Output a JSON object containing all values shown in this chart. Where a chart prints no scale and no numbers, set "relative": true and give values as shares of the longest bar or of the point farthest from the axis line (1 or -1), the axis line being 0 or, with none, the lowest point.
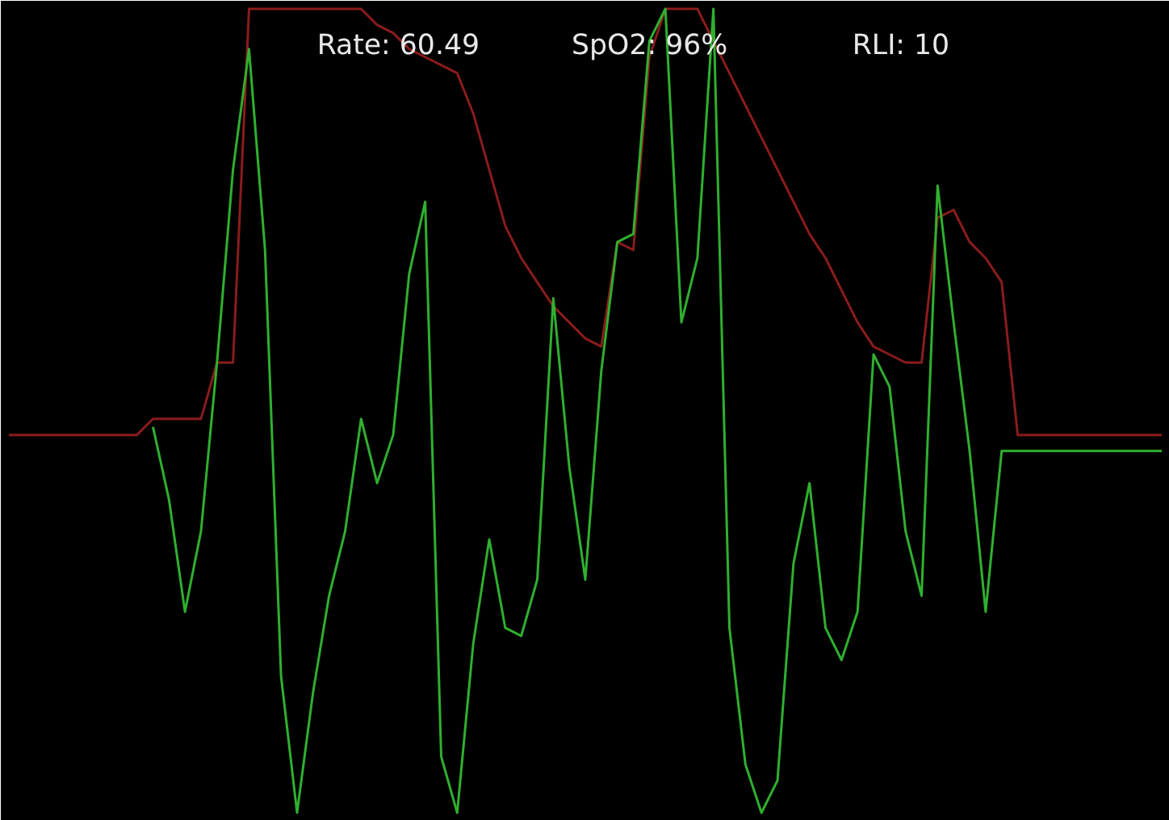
{
  "chart_data": {
    "type": "line",
    "relative": true,
    "annotations": [
      "Rate: 60.49",
      "SpO2: 96%",
      "RLI: 10"
    ],
    "categories": [
      null,
      null,
      null,
      null,
      null,
      null,
      null,
      null,
      null,
      null,
      null,
      null,
      null,
      null,
      null,
      null,
      null,
      null,
      null,
      null,
      null,
      null,
      null,
      null,
      null,
      null,
      null,
      null,
      null,
      null,
      null,
      null,
      null,
      null,
      null,
      null,
      null,
      null,
      null,
      null,
      null,
      null,
      null,
      null,
      null,
      null,
      null,
      null,
      null,
      null,
      null,
      null,
      null,
      null,
      null,
      null,
      null,
      null,
      null,
      null,
      null,
      null,
      null,
      null,
      null,
      null,
      null,
      null,
      null,
      null,
      null,
      null,
      null
    ],
    "series": [
      {
        "color": "#8b1c1c",
        "values": [
          0.47,
          0.47,
          0.47,
          0.47,
          0.47,
          0.47,
          0.47,
          0.47,
          0.47,
          0.49,
          0.49,
          0.49,
          0.49,
          0.56,
          0.56,
          1,
          1,
          1,
          1,
          1,
          1,
          1,
          1,
          0.98,
          0.97,
          0.95,
          0.94,
          0.93,
          0.92,
          0.87,
          0.8,
          0.73,
          0.69,
          0.66,
          0.63,
          0.61,
          0.59,
          0.58,
          0.71,
          0.7,
          0.94,
          1,
          1,
          1,
          0.96,
          0.92,
          0.88,
          0.84,
          0.8,
          0.76,
          0.72,
          0.69,
          0.65,
          0.61,
          0.58,
          0.57,
          0.56,
          0.56,
          0.74,
          0.75,
          0.71,
          0.69,
          0.66,
          0.47,
          0.47,
          0.47,
          0.47,
          0.47,
          0.47,
          0.47,
          0.47,
          0.47,
          0.47
        ]
      },
      {
        "color": "#2fb02f",
        "values": [
          null,
          null,
          null,
          null,
          null,
          null,
          null,
          null,
          null,
          0.48,
          0.39,
          0.25,
          0.35,
          0.56,
          0.8,
          0.95,
          0.7,
          0.17,
          0,
          0.15,
          0.27,
          0.35,
          0.49,
          0.41,
          0.47,
          0.67,
          0.76,
          0.07,
          0,
          0.21,
          0.34,
          0.23,
          0.22,
          0.29,
          0.64,
          0.43,
          0.29,
          0.55,
          0.71,
          0.72,
          0.96,
          1,
          0.61,
          0.69,
          1,
          0.23,
          0.06,
          0,
          0.04,
          0.31,
          0.41,
          0.23,
          0.19,
          0.25,
          0.57,
          0.53,
          0.35,
          0.27,
          0.78,
          0.61,
          0.45,
          0.25,
          0.45,
          0.45,
          0.45,
          0.45,
          0.45,
          0.45,
          0.45,
          0.45,
          0.45,
          0.45,
          0.45
        ]
      }
    ]
  }
}
